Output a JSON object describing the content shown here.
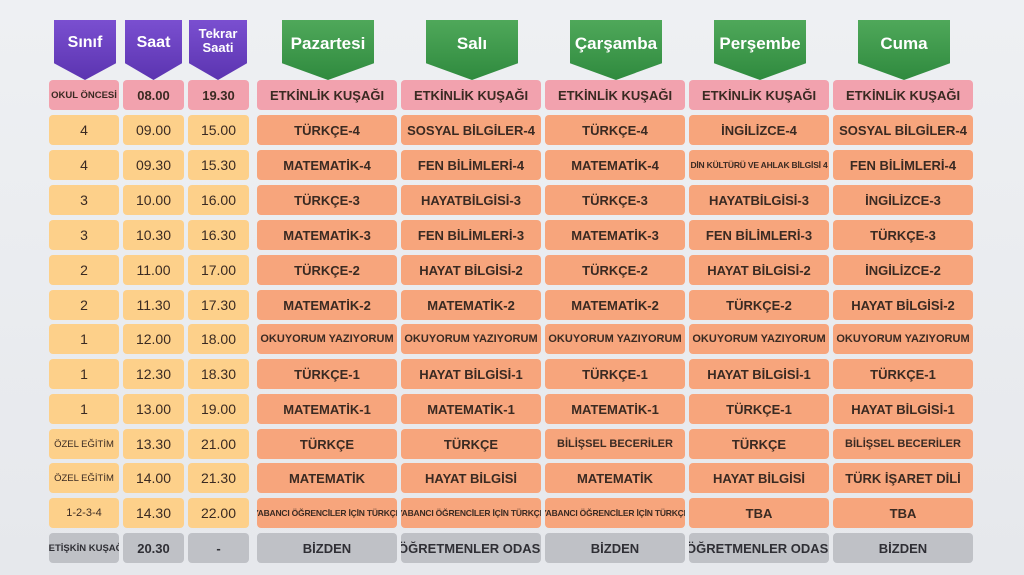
{
  "headers": {
    "sinif": "Sınıf",
    "saat": "Saat",
    "tekrar_line1": "Tekrar",
    "tekrar_line2": "Saati",
    "days": [
      "Pazartesi",
      "Salı",
      "Çarşamba",
      "Perşembe",
      "Cuma"
    ]
  },
  "colors": {
    "header_purple": "#6a44c4",
    "header_green": "#3f9a4c",
    "cell_yellow": "#fdd08a",
    "cell_orange": "#f7a57c",
    "cell_pink": "#f2a2ae",
    "cell_gray": "#bfc1c6"
  },
  "rows": [
    {
      "sinif": "OKUL ÖNCESİ",
      "saat": "08.00",
      "tekrar": "19.30",
      "days": [
        "ETKİNLİK KUŞAĞI",
        "ETKİNLİK KUŞAĞI",
        "ETKİNLİK KUŞAĞI",
        "ETKİNLİK KUŞAĞI",
        "ETKİNLİK KUŞAĞI"
      ]
    },
    {
      "sinif": "4",
      "saat": "09.00",
      "tekrar": "15.00",
      "days": [
        "TÜRKÇE-4",
        "SOSYAL BİLGİLER-4",
        "TÜRKÇE-4",
        "İNGİLİZCE-4",
        "SOSYAL BİLGİLER-4"
      ]
    },
    {
      "sinif": "4",
      "saat": "09.30",
      "tekrar": "15.30",
      "days": [
        "MATEMATİK-4",
        "FEN BİLİMLERİ-4",
        "MATEMATİK-4",
        "DİN KÜLTÜRÜ VE AHLAK BİLGİSİ 4",
        "FEN BİLİMLERİ-4"
      ]
    },
    {
      "sinif": "3",
      "saat": "10.00",
      "tekrar": "16.00",
      "days": [
        "TÜRKÇE-3",
        "HAYATBİLGİSİ-3",
        "TÜRKÇE-3",
        "HAYATBİLGİSİ-3",
        "İNGİLİZCE-3"
      ]
    },
    {
      "sinif": "3",
      "saat": "10.30",
      "tekrar": "16.30",
      "days": [
        "MATEMATİK-3",
        "FEN BİLİMLERİ-3",
        "MATEMATİK-3",
        "FEN BİLİMLERİ-3",
        "TÜRKÇE-3"
      ]
    },
    {
      "sinif": "2",
      "saat": "11.00",
      "tekrar": "17.00",
      "days": [
        "TÜRKÇE-2",
        "HAYAT BİLGİSİ-2",
        "TÜRKÇE-2",
        "HAYAT BİLGİSİ-2",
        "İNGİLİZCE-2"
      ]
    },
    {
      "sinif": "2",
      "saat": "11.30",
      "tekrar": "17.30",
      "days": [
        "MATEMATİK-2",
        "MATEMATİK-2",
        "MATEMATİK-2",
        "TÜRKÇE-2",
        "HAYAT BİLGİSİ-2"
      ]
    },
    {
      "sinif": "1",
      "saat": "12.00",
      "tekrar": "18.00",
      "days": [
        "OKUYORUM YAZIYORUM",
        "OKUYORUM YAZIYORUM",
        "OKUYORUM YAZIYORUM",
        "OKUYORUM YAZIYORUM",
        "OKUYORUM YAZIYORUM"
      ]
    },
    {
      "sinif": "1",
      "saat": "12.30",
      "tekrar": "18.30",
      "days": [
        "TÜRKÇE-1",
        "HAYAT BİLGİSİ-1",
        "TÜRKÇE-1",
        "HAYAT BİLGİSİ-1",
        "TÜRKÇE-1"
      ]
    },
    {
      "sinif": "1",
      "saat": "13.00",
      "tekrar": "19.00",
      "days": [
        "MATEMATİK-1",
        "MATEMATİK-1",
        "MATEMATİK-1",
        "TÜRKÇE-1",
        "HAYAT BİLGİSİ-1"
      ]
    },
    {
      "sinif": "ÖZEL EĞİTİM",
      "saat": "13.30",
      "tekrar": "21.00",
      "days": [
        "TÜRKÇE",
        "TÜRKÇE",
        "BİLİŞSEL BECERİLER",
        "TÜRKÇE",
        "BİLİŞSEL BECERİLER"
      ]
    },
    {
      "sinif": "ÖZEL EĞİTİM",
      "saat": "14.00",
      "tekrar": "21.30",
      "days": [
        "MATEMATİK",
        "HAYAT BİLGİSİ",
        "MATEMATİK",
        "HAYAT BİLGİSİ",
        "TÜRK İŞARET DİLİ"
      ]
    },
    {
      "sinif": "1-2-3-4",
      "saat": "14.30",
      "tekrar": "22.00",
      "days": [
        "YABANCI ÖĞRENCİLER İÇİN TÜRKÇE",
        "YABANCI ÖĞRENCİLER İÇİN TÜRKÇE",
        "YABANCI ÖĞRENCİLER İÇİN TÜRKÇE",
        "TBA",
        "TBA"
      ]
    },
    {
      "sinif": "YETİŞKİN KUŞAĞI",
      "saat": "20.30",
      "tekrar": "-",
      "days": [
        "BİZDEN",
        "ÖĞRETMENLER ODASI",
        "BİZDEN",
        "ÖĞRETMENLER ODASI",
        "BİZDEN"
      ]
    }
  ]
}
